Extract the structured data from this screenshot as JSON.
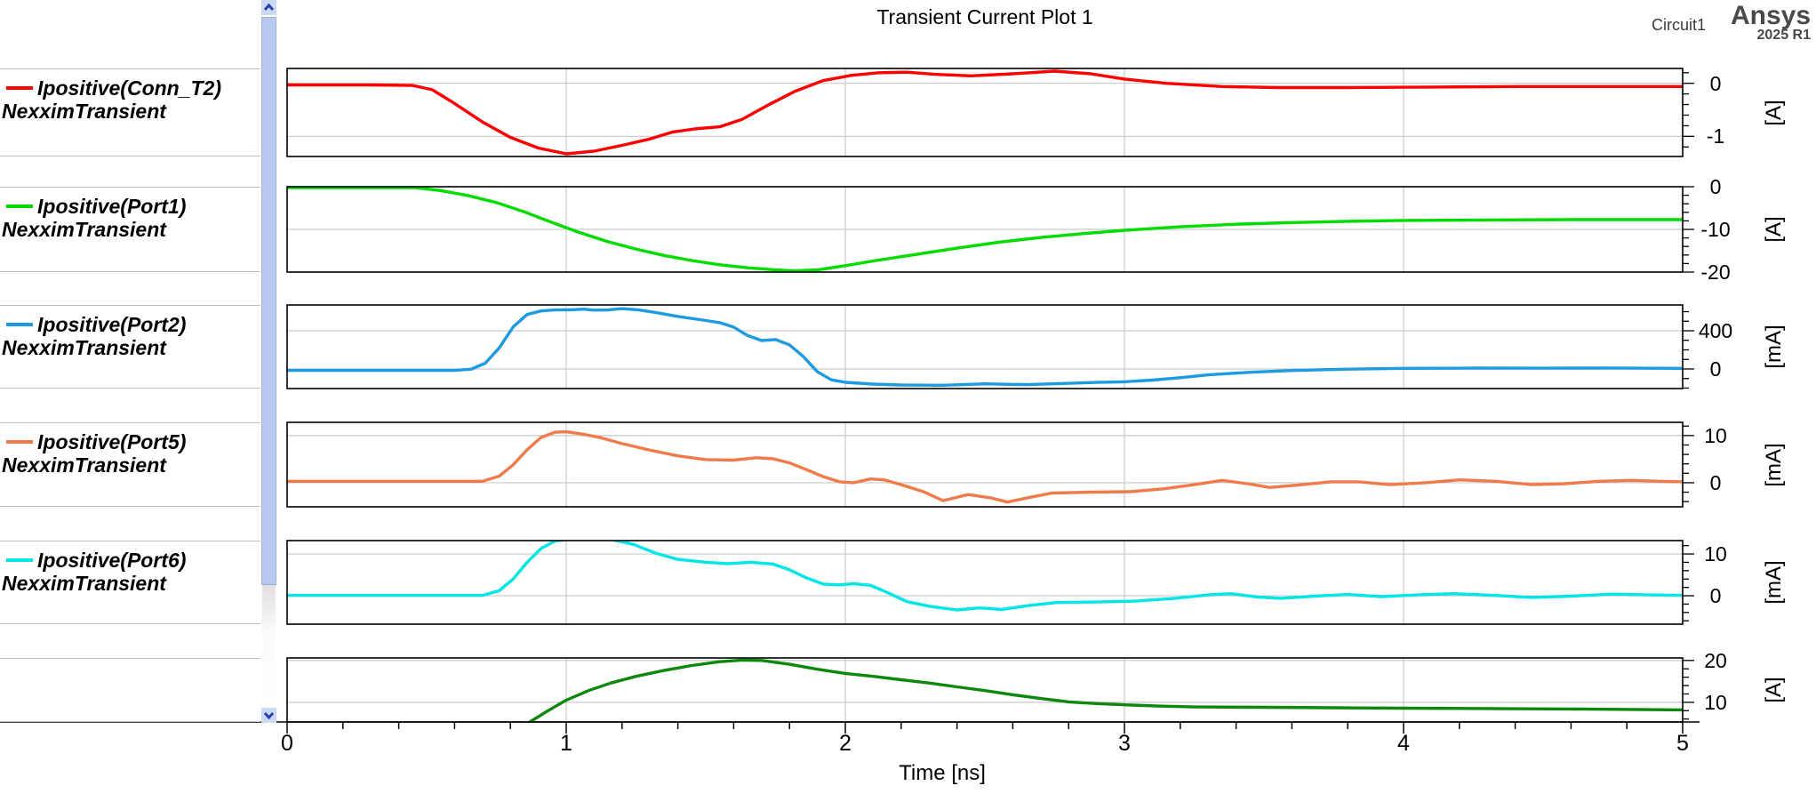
{
  "header": {
    "title": "Transient Current Plot 1",
    "project_name": "Circuit1",
    "brand": "Ansys",
    "brand_release": "2025 R1"
  },
  "x_axis": {
    "label": "Time [ns]",
    "range": [
      0,
      5
    ],
    "major_ticks": [
      0,
      1,
      2,
      3,
      4,
      5
    ],
    "minor_step": 0.2
  },
  "colors": {
    "grid": "#c9c9c9",
    "frame": "#000000",
    "divider": "#bfbfbf",
    "scroll_thumb": "#b7c9ee",
    "scroll_button_bg": "#ccd9f4",
    "scroll_arrow": "#2b3fb0",
    "brand_text": "#4a4a4a"
  },
  "chart_data": [
    {
      "type": "line",
      "name": "Ipositive(Conn_T2)",
      "solution": "NexximTransient",
      "color": "#ff0000",
      "unit": "[A]",
      "xlabel": "Time [ns]",
      "xlim": [
        0,
        5
      ],
      "ylim": [
        -1.38,
        0.28
      ],
      "yticks": [
        0,
        -1
      ],
      "ytick_labels": [
        "0",
        "-1"
      ],
      "ytick_minor_step": 0.2,
      "points": [
        [
          0,
          -0.03
        ],
        [
          0.3,
          -0.03
        ],
        [
          0.45,
          -0.04
        ],
        [
          0.52,
          -0.12
        ],
        [
          0.6,
          -0.38
        ],
        [
          0.7,
          -0.73
        ],
        [
          0.8,
          -1.02
        ],
        [
          0.9,
          -1.22
        ],
        [
          1.0,
          -1.33
        ],
        [
          1.1,
          -1.28
        ],
        [
          1.2,
          -1.17
        ],
        [
          1.3,
          -1.05
        ],
        [
          1.38,
          -0.92
        ],
        [
          1.46,
          -0.86
        ],
        [
          1.55,
          -0.82
        ],
        [
          1.63,
          -0.68
        ],
        [
          1.72,
          -0.42
        ],
        [
          1.82,
          -0.15
        ],
        [
          1.92,
          0.05
        ],
        [
          2.02,
          0.15
        ],
        [
          2.12,
          0.2
        ],
        [
          2.22,
          0.21
        ],
        [
          2.32,
          0.17
        ],
        [
          2.45,
          0.14
        ],
        [
          2.6,
          0.18
        ],
        [
          2.75,
          0.23
        ],
        [
          2.88,
          0.18
        ],
        [
          3.0,
          0.08
        ],
        [
          3.15,
          0.0
        ],
        [
          3.35,
          -0.06
        ],
        [
          3.55,
          -0.08
        ],
        [
          3.8,
          -0.08
        ],
        [
          4.1,
          -0.07
        ],
        [
          4.4,
          -0.06
        ],
        [
          4.7,
          -0.06
        ],
        [
          5.0,
          -0.06
        ]
      ]
    },
    {
      "type": "line",
      "name": "Ipositive(Port1)",
      "solution": "NexximTransient",
      "color": "#00dc00",
      "unit": "[A]",
      "xlabel": "Time [ns]",
      "xlim": [
        0,
        5
      ],
      "ylim": [
        -20,
        0
      ],
      "yticks": [
        0,
        -10,
        -20
      ],
      "ytick_labels": [
        "0",
        "-10",
        "-20"
      ],
      "ytick_minor_step": 2,
      "points": [
        [
          0,
          -0.2
        ],
        [
          0.46,
          -0.2
        ],
        [
          0.55,
          -0.9
        ],
        [
          0.65,
          -2.1
        ],
        [
          0.75,
          -3.7
        ],
        [
          0.85,
          -5.9
        ],
        [
          0.95,
          -8.4
        ],
        [
          1.05,
          -10.8
        ],
        [
          1.15,
          -12.9
        ],
        [
          1.25,
          -14.6
        ],
        [
          1.35,
          -16.1
        ],
        [
          1.45,
          -17.3
        ],
        [
          1.55,
          -18.3
        ],
        [
          1.65,
          -19.0
        ],
        [
          1.75,
          -19.5
        ],
        [
          1.82,
          -19.7
        ],
        [
          1.9,
          -19.5
        ],
        [
          2.0,
          -18.5
        ],
        [
          2.1,
          -17.4
        ],
        [
          2.25,
          -15.9
        ],
        [
          2.4,
          -14.4
        ],
        [
          2.55,
          -13.0
        ],
        [
          2.7,
          -11.9
        ],
        [
          2.85,
          -11.0
        ],
        [
          3.0,
          -10.2
        ],
        [
          3.2,
          -9.4
        ],
        [
          3.4,
          -8.8
        ],
        [
          3.6,
          -8.4
        ],
        [
          3.8,
          -8.1
        ],
        [
          4.0,
          -7.9
        ],
        [
          4.3,
          -7.8
        ],
        [
          4.6,
          -7.7
        ],
        [
          5.0,
          -7.7
        ]
      ]
    },
    {
      "type": "line",
      "name": "Ipositive(Port2)",
      "solution": "NexximTransient",
      "color": "#1e9be0",
      "unit": "[mA]",
      "xlabel": "Time [ns]",
      "xlim": [
        0,
        5
      ],
      "ylim": [
        -205,
        670
      ],
      "yticks": [
        400,
        0
      ],
      "ytick_labels": [
        "400",
        "0"
      ],
      "ytick_minor_step": 100,
      "points": [
        [
          0,
          -15
        ],
        [
          0.6,
          -15
        ],
        [
          0.66,
          -2
        ],
        [
          0.71,
          60
        ],
        [
          0.76,
          220
        ],
        [
          0.81,
          440
        ],
        [
          0.86,
          570
        ],
        [
          0.91,
          608
        ],
        [
          0.96,
          618
        ],
        [
          1.02,
          620
        ],
        [
          1.06,
          626
        ],
        [
          1.1,
          616
        ],
        [
          1.15,
          618
        ],
        [
          1.2,
          632
        ],
        [
          1.26,
          618
        ],
        [
          1.32,
          592
        ],
        [
          1.4,
          550
        ],
        [
          1.48,
          516
        ],
        [
          1.55,
          485
        ],
        [
          1.6,
          438
        ],
        [
          1.65,
          350
        ],
        [
          1.7,
          298
        ],
        [
          1.75,
          308
        ],
        [
          1.8,
          252
        ],
        [
          1.85,
          128
        ],
        [
          1.9,
          -30
        ],
        [
          1.95,
          -114
        ],
        [
          2.0,
          -140
        ],
        [
          2.1,
          -158
        ],
        [
          2.2,
          -168
        ],
        [
          2.35,
          -171
        ],
        [
          2.5,
          -156
        ],
        [
          2.65,
          -164
        ],
        [
          2.78,
          -152
        ],
        [
          2.9,
          -141
        ],
        [
          3.0,
          -134
        ],
        [
          3.1,
          -117
        ],
        [
          3.2,
          -91
        ],
        [
          3.3,
          -62
        ],
        [
          3.45,
          -35
        ],
        [
          3.6,
          -16
        ],
        [
          3.8,
          -2
        ],
        [
          4.0,
          6
        ],
        [
          4.25,
          9
        ],
        [
          4.5,
          8
        ],
        [
          4.75,
          10
        ],
        [
          5.0,
          6
        ]
      ]
    },
    {
      "type": "line",
      "name": "Ipositive(Port5)",
      "solution": "NexximTransient",
      "color": "#f07b4a",
      "unit": "[mA]",
      "xlabel": "Time [ns]",
      "xlim": [
        0,
        5
      ],
      "ylim": [
        -5.1,
        12.8
      ],
      "yticks": [
        10,
        0
      ],
      "ytick_labels": [
        "10",
        "0"
      ],
      "ytick_minor_step": 2,
      "points": [
        [
          0,
          0.3
        ],
        [
          0.7,
          0.3
        ],
        [
          0.76,
          1.4
        ],
        [
          0.81,
          3.8
        ],
        [
          0.86,
          7.0
        ],
        [
          0.91,
          9.6
        ],
        [
          0.96,
          10.7
        ],
        [
          1.0,
          10.8
        ],
        [
          1.06,
          10.3
        ],
        [
          1.12,
          9.6
        ],
        [
          1.2,
          8.3
        ],
        [
          1.3,
          6.9
        ],
        [
          1.4,
          5.7
        ],
        [
          1.5,
          4.9
        ],
        [
          1.6,
          4.8
        ],
        [
          1.68,
          5.3
        ],
        [
          1.74,
          5.1
        ],
        [
          1.8,
          4.2
        ],
        [
          1.86,
          2.8
        ],
        [
          1.92,
          1.3
        ],
        [
          1.98,
          0.2
        ],
        [
          2.03,
          0.0
        ],
        [
          2.09,
          0.8
        ],
        [
          2.14,
          0.6
        ],
        [
          2.2,
          -0.4
        ],
        [
          2.28,
          -1.9
        ],
        [
          2.35,
          -3.8
        ],
        [
          2.44,
          -2.5
        ],
        [
          2.52,
          -3.2
        ],
        [
          2.58,
          -4.1
        ],
        [
          2.66,
          -3.1
        ],
        [
          2.74,
          -2.2
        ],
        [
          2.88,
          -2.0
        ],
        [
          3.02,
          -1.9
        ],
        [
          3.14,
          -1.3
        ],
        [
          3.25,
          -0.4
        ],
        [
          3.35,
          0.5
        ],
        [
          3.44,
          -0.2
        ],
        [
          3.52,
          -1.0
        ],
        [
          3.62,
          -0.5
        ],
        [
          3.74,
          0.2
        ],
        [
          3.84,
          0.2
        ],
        [
          3.95,
          -0.4
        ],
        [
          4.08,
          0.0
        ],
        [
          4.2,
          0.6
        ],
        [
          4.33,
          0.3
        ],
        [
          4.46,
          -0.4
        ],
        [
          4.58,
          -0.2
        ],
        [
          4.7,
          0.3
        ],
        [
          4.82,
          0.5
        ],
        [
          4.92,
          0.3
        ],
        [
          5.0,
          0.2
        ]
      ]
    },
    {
      "type": "line",
      "name": "Ipositive(Port6)",
      "solution": "NexximTransient",
      "color": "#00e5e5",
      "unit": "[mA]",
      "xlabel": "Time [ns]",
      "xlim": [
        0,
        5
      ],
      "ylim": [
        -6.8,
        13.2
      ],
      "yticks": [
        10,
        0
      ],
      "ytick_labels": [
        "10",
        "0"
      ],
      "ytick_minor_step": 2,
      "points": [
        [
          0,
          0.1
        ],
        [
          0.7,
          0.1
        ],
        [
          0.76,
          1.2
        ],
        [
          0.81,
          4.0
        ],
        [
          0.86,
          8.0
        ],
        [
          0.91,
          11.3
        ],
        [
          0.96,
          13.1
        ],
        [
          1.02,
          13.7
        ],
        [
          1.1,
          13.8
        ],
        [
          1.16,
          13.5
        ],
        [
          1.24,
          12.3
        ],
        [
          1.32,
          10.2
        ],
        [
          1.4,
          8.7
        ],
        [
          1.5,
          8.0
        ],
        [
          1.58,
          7.7
        ],
        [
          1.66,
          8.0
        ],
        [
          1.74,
          7.6
        ],
        [
          1.8,
          6.2
        ],
        [
          1.86,
          4.3
        ],
        [
          1.92,
          2.8
        ],
        [
          1.98,
          2.6
        ],
        [
          2.03,
          2.9
        ],
        [
          2.09,
          2.5
        ],
        [
          2.15,
          0.8
        ],
        [
          2.22,
          -1.4
        ],
        [
          2.3,
          -2.5
        ],
        [
          2.4,
          -3.4
        ],
        [
          2.48,
          -2.9
        ],
        [
          2.56,
          -3.3
        ],
        [
          2.66,
          -2.3
        ],
        [
          2.76,
          -1.6
        ],
        [
          2.9,
          -1.5
        ],
        [
          3.04,
          -1.3
        ],
        [
          3.18,
          -0.6
        ],
        [
          3.3,
          0.2
        ],
        [
          3.38,
          0.5
        ],
        [
          3.48,
          -0.3
        ],
        [
          3.56,
          -0.6
        ],
        [
          3.68,
          -0.1
        ],
        [
          3.8,
          0.3
        ],
        [
          3.92,
          -0.2
        ],
        [
          4.05,
          0.2
        ],
        [
          4.18,
          0.5
        ],
        [
          4.32,
          0.1
        ],
        [
          4.46,
          -0.4
        ],
        [
          4.6,
          -0.1
        ],
        [
          4.75,
          0.4
        ],
        [
          4.88,
          0.2
        ],
        [
          5.0,
          0.1
        ]
      ]
    },
    {
      "type": "line",
      "name": "",
      "solution": "",
      "color": "#0e870e",
      "unit": "[A]",
      "xlabel": "Time [ns]",
      "xlim": [
        0,
        5
      ],
      "ylim": [
        5.3,
        20.6
      ],
      "yticks": [
        20,
        10
      ],
      "ytick_labels": [
        "20",
        "10"
      ],
      "ytick_minor_step": 2,
      "points": [
        [
          0.7,
          0.8
        ],
        [
          0.78,
          2.6
        ],
        [
          0.86,
          4.9
        ],
        [
          0.93,
          7.8
        ],
        [
          1.0,
          10.5
        ],
        [
          1.08,
          12.8
        ],
        [
          1.16,
          14.6
        ],
        [
          1.25,
          16.2
        ],
        [
          1.35,
          17.6
        ],
        [
          1.45,
          18.8
        ],
        [
          1.55,
          19.7
        ],
        [
          1.63,
          20.1
        ],
        [
          1.7,
          20.0
        ],
        [
          1.8,
          19.1
        ],
        [
          1.9,
          17.9
        ],
        [
          2.0,
          16.9
        ],
        [
          2.1,
          16.2
        ],
        [
          2.2,
          15.4
        ],
        [
          2.3,
          14.6
        ],
        [
          2.4,
          13.7
        ],
        [
          2.5,
          12.8
        ],
        [
          2.6,
          11.8
        ],
        [
          2.7,
          10.9
        ],
        [
          2.8,
          10.1
        ],
        [
          2.9,
          9.7
        ],
        [
          3.0,
          9.4
        ],
        [
          3.12,
          9.1
        ],
        [
          3.25,
          8.9
        ],
        [
          3.5,
          8.8
        ],
        [
          3.75,
          8.7
        ],
        [
          4.0,
          8.6
        ],
        [
          4.3,
          8.5
        ],
        [
          4.6,
          8.4
        ],
        [
          5.0,
          8.2
        ]
      ]
    }
  ]
}
